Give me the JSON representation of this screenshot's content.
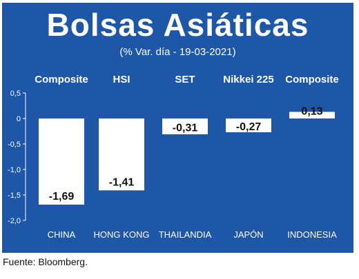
{
  "title": "Bolsas Asiáticas",
  "subtitle": "(% Var. día - 19-03-2021)",
  "source": "Fuente: Bloomberg.",
  "colors": {
    "panel": "#1e56a8",
    "bar": "#ffffff",
    "text": "#ffffff",
    "value_text": "#111111"
  },
  "chart_data": {
    "type": "bar",
    "index_names": [
      "Composite",
      "HSI",
      "SET",
      "Nikkei 225",
      "Composite"
    ],
    "categories": [
      "CHINA",
      "HONG KONG",
      "THAILANDIA",
      "JAPÓN",
      "INDONESIA"
    ],
    "values": [
      -1.69,
      -1.41,
      -0.31,
      -0.27,
      0.13
    ],
    "value_labels": [
      "-1,69",
      "-1,41",
      "-0,31",
      "-0,27",
      "0,13"
    ],
    "ylim": [
      -2.0,
      0.5
    ],
    "yticks": [
      0.5,
      0,
      -0.5,
      -1.0,
      -1.5,
      -2.0
    ],
    "ytick_labels": [
      "0,5",
      "0",
      "-0,5",
      "-1,0",
      "-1,5",
      "-2,0"
    ],
    "grid": false
  }
}
